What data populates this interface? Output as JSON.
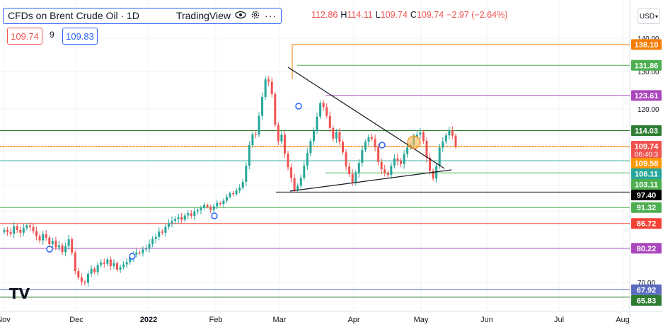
{
  "legend": {
    "title": "CFDs on Brent Crude Oil · 1D",
    "source": "TradingView",
    "eye_icon": "eye-icon",
    "settings_icon": "gear-icon",
    "more_icon": "more-icon"
  },
  "ohlc": {
    "open": "112.86",
    "high_label": "H",
    "high": "114.11",
    "low_label": "L",
    "low": "109.74",
    "close_label": "C",
    "close": "109.74",
    "change": "−2.97 (−2.64%)"
  },
  "bid": "109.74",
  "spread": "9",
  "ask": "109.83",
  "currency": "USD",
  "price_axis": {
    "ticks": [
      "140.00",
      "130.00",
      "120.00",
      "70.00"
    ]
  },
  "time_axis": {
    "labels": [
      "Nov",
      "Dec",
      "2022",
      "Feb",
      "Mar",
      "Apr",
      "May",
      "Jun",
      "Jul",
      "Aug"
    ]
  },
  "levels": [
    {
      "label": "138.10",
      "color": "#f57c00"
    },
    {
      "label": "131.86",
      "color": "#4caf50"
    },
    {
      "label": "123.61",
      "color": "#ab47bc"
    },
    {
      "label": "114.03",
      "color": "#2e7d32"
    },
    {
      "label": "109.58",
      "color": "#ff9800"
    },
    {
      "label": "106.11",
      "color": "#26a69a"
    },
    {
      "label": "103.11",
      "color": "#4caf50"
    },
    {
      "label": "97.40",
      "color": "#000000"
    },
    {
      "label": "91.32",
      "color": "#4caf50"
    },
    {
      "label": "86.72",
      "color": "#f44336"
    },
    {
      "label": "80.22",
      "color": "#ab47bc"
    },
    {
      "label": "67.92",
      "color": "#5c6bc0"
    },
    {
      "label": "65.83",
      "color": "#2e7d32"
    }
  ],
  "current_price": {
    "label": "109.74",
    "countdown": "06:40:3",
    "color": "#ef5350"
  },
  "colors": {
    "up": "#26a69a",
    "down": "#ef5350",
    "accent": "#2962ff"
  },
  "logo": "TV"
}
